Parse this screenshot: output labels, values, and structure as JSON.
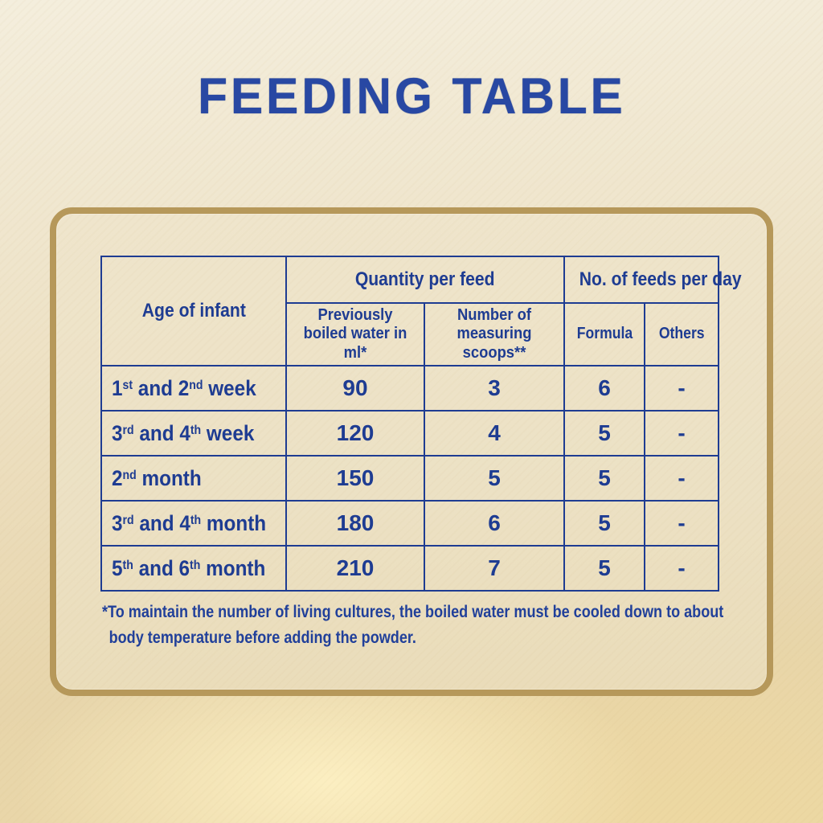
{
  "page": {
    "title": "FEEDING TABLE"
  },
  "table": {
    "header": {
      "age": "Age of infant",
      "quantity_group": "Quantity per feed",
      "feeds_group": "No. of feeds per day",
      "water": "Previously boiled water in ml*",
      "scoops": "Number of measuring scoops**",
      "formula": "Formula",
      "others": "Others"
    },
    "rows": [
      {
        "age": "1[st] and 2[nd] week",
        "water": "90",
        "scoops": "3",
        "formula": "6",
        "others": "-"
      },
      {
        "age": "3[rd] and 4[th] week",
        "water": "120",
        "scoops": "4",
        "formula": "5",
        "others": "-"
      },
      {
        "age": "2[nd] month",
        "water": "150",
        "scoops": "5",
        "formula": "5",
        "others": "-"
      },
      {
        "age": "3[rd] and 4[th] month",
        "water": "180",
        "scoops": "6",
        "formula": "5",
        "others": "-"
      },
      {
        "age": "5[th] and 6[th] month",
        "water": "210",
        "scoops": "7",
        "formula": "5",
        "others": "-"
      }
    ]
  },
  "footnote": {
    "line1": "*To maintain the number of living cultures, the boiled water must be cooled down to about",
    "line2": "body temperature before adding the powder."
  },
  "colors": {
    "title_blue": "#2848a3",
    "table_blue": "#1e3c92",
    "frame_gold": "#b6985a",
    "background_cream": "#efe5cc"
  }
}
